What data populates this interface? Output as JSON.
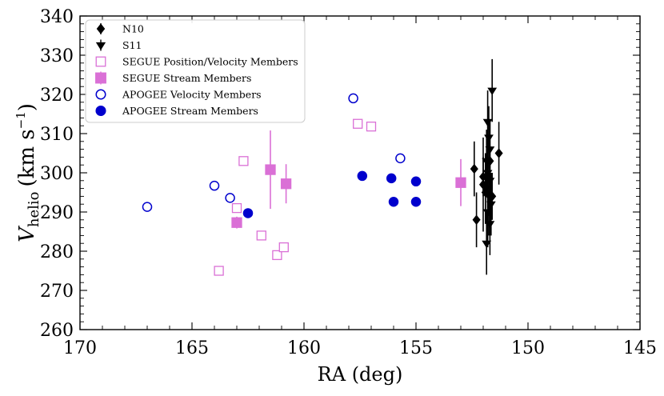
{
  "chart_data": {
    "type": "scatter",
    "xlabel": "RA (deg)",
    "ylabel_main": "V",
    "ylabel_sub": "helio",
    "ylabel_units_open": "(km s",
    "ylabel_units_exp": "−1",
    "ylabel_units_close": ")",
    "xlim": [
      170,
      145
    ],
    "ylim": [
      260,
      340
    ],
    "x_ticks": [
      170,
      165,
      160,
      155,
      150,
      145
    ],
    "y_ticks": [
      260,
      270,
      280,
      290,
      300,
      310,
      320,
      330,
      340
    ],
    "legend_position": "top-left",
    "series": [
      {
        "name": "N10",
        "marker": "diamond",
        "color": "#000000",
        "filled": true,
        "points": [
          {
            "x": 152.4,
            "y": 301,
            "yerr": 7
          },
          {
            "x": 152.3,
            "y": 288,
            "yerr": 7
          },
          {
            "x": 152.0,
            "y": 297,
            "yerr": 12
          },
          {
            "x": 151.9,
            "y": 295,
            "yerr": 8
          },
          {
            "x": 151.7,
            "y": 303,
            "yerr": 10
          },
          {
            "x": 151.3,
            "y": 305,
            "yerr": 8
          },
          {
            "x": 151.6,
            "y": 294,
            "yerr": 6
          },
          {
            "x": 152.0,
            "y": 299,
            "yerr": 5
          }
        ]
      },
      {
        "name": "S11",
        "marker": "triangle-down",
        "color": "#000000",
        "filled": true,
        "points": [
          {
            "x": 151.6,
            "y": 321,
            "yerr": 8
          },
          {
            "x": 151.8,
            "y": 313,
            "yerr": 8
          },
          {
            "x": 151.75,
            "y": 309,
            "yerr": 8
          },
          {
            "x": 151.7,
            "y": 306,
            "yerr": 7
          },
          {
            "x": 151.85,
            "y": 303,
            "yerr": 8
          },
          {
            "x": 151.8,
            "y": 300,
            "yerr": 9
          },
          {
            "x": 151.7,
            "y": 298,
            "yerr": 9
          },
          {
            "x": 151.9,
            "y": 296,
            "yerr": 9
          },
          {
            "x": 151.75,
            "y": 294,
            "yerr": 10
          },
          {
            "x": 151.65,
            "y": 292,
            "yerr": 8
          },
          {
            "x": 151.8,
            "y": 290,
            "yerr": 9
          },
          {
            "x": 151.7,
            "y": 287,
            "yerr": 8
          },
          {
            "x": 151.85,
            "y": 282,
            "yerr": 8
          }
        ]
      },
      {
        "name": "SEGUE Position/Velocity Members",
        "marker": "square",
        "color": "#DA70D6",
        "filled": false,
        "points": [
          {
            "x": 163.8,
            "y": 275
          },
          {
            "x": 163.0,
            "y": 291
          },
          {
            "x": 162.7,
            "y": 303
          },
          {
            "x": 161.9,
            "y": 284
          },
          {
            "x": 161.2,
            "y": 279
          },
          {
            "x": 160.9,
            "y": 281
          },
          {
            "x": 157.6,
            "y": 312.5
          },
          {
            "x": 157.0,
            "y": 311.8
          }
        ]
      },
      {
        "name": "SEGUE Stream Members",
        "marker": "square",
        "color": "#DA70D6",
        "filled": true,
        "points": [
          {
            "x": 163.0,
            "y": 287.3,
            "yerr": 1.5
          },
          {
            "x": 161.5,
            "y": 300.8,
            "yerr": 10
          },
          {
            "x": 160.8,
            "y": 297.2,
            "yerr": 5
          },
          {
            "x": 153.0,
            "y": 297.5,
            "yerr": 6
          }
        ]
      },
      {
        "name": "APOGEE Velocity Members",
        "marker": "circle",
        "color": "#0000CD",
        "filled": false,
        "points": [
          {
            "x": 167.0,
            "y": 291.3
          },
          {
            "x": 164.0,
            "y": 296.7
          },
          {
            "x": 163.3,
            "y": 293.6
          },
          {
            "x": 157.8,
            "y": 319.0
          },
          {
            "x": 155.7,
            "y": 303.7
          }
        ]
      },
      {
        "name": "APOGEE Stream Members",
        "marker": "circle",
        "color": "#0000CD",
        "filled": true,
        "points": [
          {
            "x": 162.5,
            "y": 289.7
          },
          {
            "x": 157.4,
            "y": 299.2
          },
          {
            "x": 156.1,
            "y": 298.6
          },
          {
            "x": 156.0,
            "y": 292.6
          },
          {
            "x": 155.0,
            "y": 297.8
          },
          {
            "x": 155.0,
            "y": 292.6
          }
        ]
      }
    ]
  }
}
